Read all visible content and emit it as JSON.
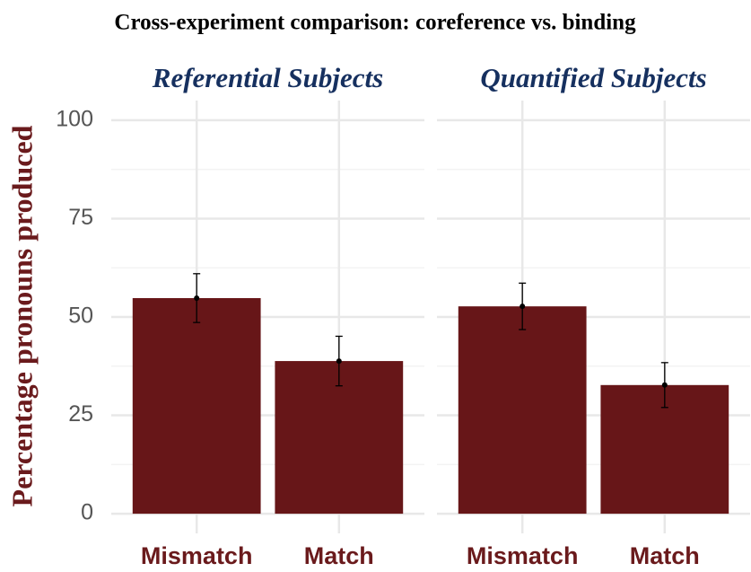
{
  "chart_data": {
    "type": "bar",
    "title": "Cross-experiment comparison: coreference vs. binding",
    "ylabel": "Percentage pronouns produced",
    "color": "#671618",
    "ylim": [
      -5,
      105
    ],
    "yticks": [
      0,
      25,
      50,
      75,
      100
    ],
    "yminorticks": [
      12.5,
      37.5,
      62.5,
      87.5
    ],
    "grid": true,
    "facets": [
      {
        "title": "Referential Subjects",
        "categories": [
          "Mismatch",
          "Match"
        ],
        "values": [
          54.8,
          38.8
        ],
        "errors": [
          6.2,
          6.3
        ]
      },
      {
        "title": "Quantified Subjects",
        "categories": [
          "Mismatch",
          "Match"
        ],
        "values": [
          52.7,
          32.7
        ],
        "errors": [
          5.9,
          5.7
        ]
      }
    ]
  }
}
